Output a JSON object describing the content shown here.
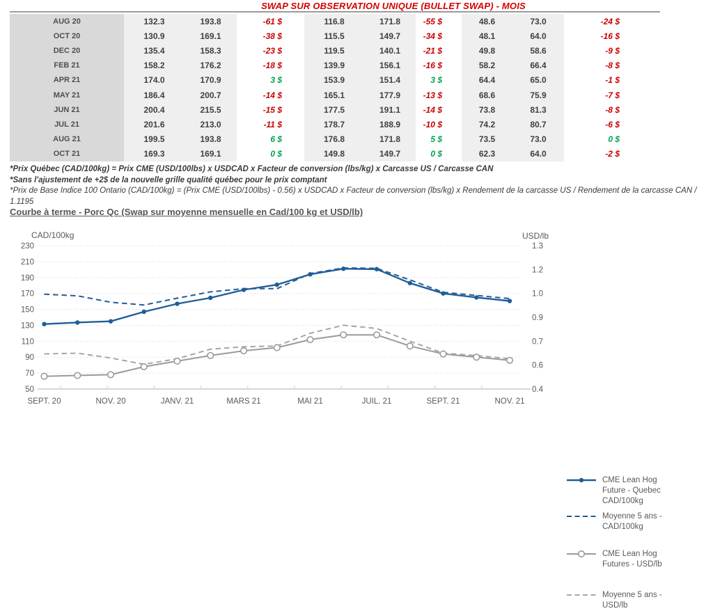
{
  "report": {
    "title": "SWAP SUR OBSERVATION UNIQUE (BULLET SWAP) - MOIS",
    "footnotes": [
      "*Prix Québec (CAD/100kg) = Prix CME (USD/100lbs) x USDCAD x Facteur de conversion (lbs/kg) x Carcasse US / Carcasse CAN",
      "*Sans l'ajustement de +2$ de la nouvelle grille qualité québec pour le prix comptant",
      "*Prix de Base Indice 100 Ontario (CAD/100kg) = (Prix CME (USD/100lbs) - 0.56) x USDCAD x Facteur de conversion (lbs/kg) x Rendement de la carcasse US / Rendement de la carcasse CAN / 1.1195"
    ]
  },
  "table": {
    "rows": [
      {
        "month": "AUG 20",
        "cells": [
          "132.3",
          "193.8",
          "-61 $",
          "116.8",
          "171.8",
          "-55 $",
          "48.6",
          "73.0",
          "-24 $"
        ]
      },
      {
        "month": "OCT 20",
        "cells": [
          "130.9",
          "169.1",
          "-38 $",
          "115.5",
          "149.7",
          "-34 $",
          "48.1",
          "64.0",
          "-16 $"
        ]
      },
      {
        "month": "DEC 20",
        "cells": [
          "135.4",
          "158.3",
          "-23 $",
          "119.5",
          "140.1",
          "-21 $",
          "49.8",
          "58.6",
          "-9 $"
        ]
      },
      {
        "month": "FEB 21",
        "cells": [
          "158.2",
          "176.2",
          "-18 $",
          "139.9",
          "156.1",
          "-16 $",
          "58.2",
          "66.4",
          "-8 $"
        ]
      },
      {
        "month": "APR 21",
        "cells": [
          "174.0",
          "170.9",
          "3 $",
          "153.9",
          "151.4",
          "3 $",
          "64.4",
          "65.0",
          "-1 $"
        ]
      },
      {
        "month": "MAY 21",
        "cells": [
          "186.4",
          "200.7",
          "-14 $",
          "165.1",
          "177.9",
          "-13 $",
          "68.6",
          "75.9",
          "-7 $"
        ]
      },
      {
        "month": "JUN 21",
        "cells": [
          "200.4",
          "215.5",
          "-15 $",
          "177.5",
          "191.1",
          "-14 $",
          "73.8",
          "81.3",
          "-8 $"
        ]
      },
      {
        "month": "JUL 21",
        "cells": [
          "201.6",
          "213.0",
          "-11 $",
          "178.7",
          "188.9",
          "-10 $",
          "74.2",
          "80.7",
          "-6 $"
        ]
      },
      {
        "month": "AUG 21",
        "cells": [
          "199.5",
          "193.8",
          "6 $",
          "176.8",
          "171.8",
          "5 $",
          "73.5",
          "73.0",
          "0 $"
        ]
      },
      {
        "month": "OCT 21",
        "cells": [
          "169.3",
          "169.1",
          "0 $",
          "149.8",
          "149.7",
          "0 $",
          "62.3",
          "64.0",
          "-2 $"
        ]
      }
    ]
  },
  "chart_data": {
    "type": "line",
    "title": "Courbe à terme - Porc Qc (Swap sur moyenne mensuelle en Cad/100 kg et USD/lb)",
    "n_points": 15,
    "x_axis_labels": [
      "SEPT. 20",
      "NOV. 20",
      "JANV. 21",
      "MARS 21",
      "MAI 21",
      "JUIL. 21",
      "SEPT. 21",
      "NOV. 21"
    ],
    "x_labels_at_indices": [
      0,
      2,
      4,
      6,
      8,
      10,
      12,
      14
    ],
    "y_left": {
      "label": "CAD/100kg",
      "ticks": [
        230,
        210,
        190,
        170,
        150,
        130,
        110,
        90,
        70,
        50
      ],
      "min": 50,
      "max": 230
    },
    "y_right": {
      "label": "USD/lb",
      "tick_labels": [
        "1.3",
        "1.2",
        "1.0",
        "0.9",
        "0.7",
        "0.6",
        "0.4"
      ],
      "min": 0.4,
      "max": 1.3
    },
    "grid": "dotted-horizontal",
    "legend_position": "right",
    "series": [
      {
        "name": "CME Lean Hog Future - Quebec CAD/100kg",
        "axis": "left",
        "style": "solid",
        "marker": "filled-dot",
        "color": "#215d97",
        "values": [
          131.5,
          133.5,
          135,
          147,
          157,
          164.5,
          174.5,
          181,
          194,
          201,
          200.5,
          183,
          170,
          165,
          160.5
        ]
      },
      {
        "name": "Moyenne 5 ans - CAD/100kg",
        "axis": "left",
        "style": "dashed",
        "marker": "none",
        "color": "#215d97",
        "values": [
          169,
          167,
          159,
          155.5,
          164,
          172,
          176,
          176,
          195,
          202,
          201.5,
          187,
          171.5,
          167.5,
          163.5
        ]
      },
      {
        "name": "CME Lean Hog Futures - USD/lb",
        "axis": "right",
        "style": "solid",
        "marker": "open-circle",
        "color": "#9a9a9a",
        "values": [
          0.48,
          0.485,
          0.49,
          0.54,
          0.575,
          0.61,
          0.64,
          0.66,
          0.71,
          0.74,
          0.74,
          0.67,
          0.62,
          0.6,
          0.58
        ]
      },
      {
        "name": "Moyenne 5 ans - USD/lb",
        "axis": "right",
        "style": "dashed",
        "marker": "none",
        "color": "#a6a6a6",
        "values": [
          0.62,
          0.625,
          0.595,
          0.555,
          0.59,
          0.65,
          0.665,
          0.67,
          0.75,
          0.8,
          0.78,
          0.7,
          0.625,
          0.61,
          0.59
        ]
      }
    ]
  },
  "colors": {
    "title_red": "#d40000",
    "negative_red": "#c80000",
    "positive_green": "#00a34e",
    "blue_series": "#215d97",
    "gray_series": "#9a9a9a",
    "gridline": "#d9d9d9"
  }
}
